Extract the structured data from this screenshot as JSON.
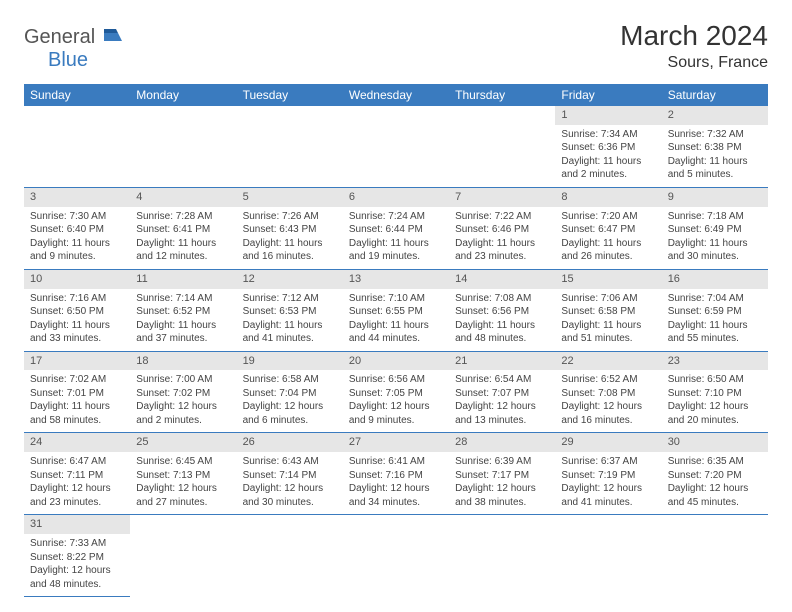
{
  "logo": {
    "general": "General",
    "blue": "Blue"
  },
  "title": "March 2024",
  "location": "Sours, France",
  "colors": {
    "header_bg": "#3a7bbf",
    "header_text": "#ffffff",
    "daynum_bg": "#e6e6e6",
    "border": "#3a7bbf",
    "text": "#444444"
  },
  "week_headers": [
    "Sunday",
    "Monday",
    "Tuesday",
    "Wednesday",
    "Thursday",
    "Friday",
    "Saturday"
  ],
  "weeks": [
    [
      null,
      null,
      null,
      null,
      null,
      {
        "n": "1",
        "sr": "Sunrise: 7:34 AM",
        "ss": "Sunset: 6:36 PM",
        "dl": "Daylight: 11 hours and 2 minutes."
      },
      {
        "n": "2",
        "sr": "Sunrise: 7:32 AM",
        "ss": "Sunset: 6:38 PM",
        "dl": "Daylight: 11 hours and 5 minutes."
      }
    ],
    [
      {
        "n": "3",
        "sr": "Sunrise: 7:30 AM",
        "ss": "Sunset: 6:40 PM",
        "dl": "Daylight: 11 hours and 9 minutes."
      },
      {
        "n": "4",
        "sr": "Sunrise: 7:28 AM",
        "ss": "Sunset: 6:41 PM",
        "dl": "Daylight: 11 hours and 12 minutes."
      },
      {
        "n": "5",
        "sr": "Sunrise: 7:26 AM",
        "ss": "Sunset: 6:43 PM",
        "dl": "Daylight: 11 hours and 16 minutes."
      },
      {
        "n": "6",
        "sr": "Sunrise: 7:24 AM",
        "ss": "Sunset: 6:44 PM",
        "dl": "Daylight: 11 hours and 19 minutes."
      },
      {
        "n": "7",
        "sr": "Sunrise: 7:22 AM",
        "ss": "Sunset: 6:46 PM",
        "dl": "Daylight: 11 hours and 23 minutes."
      },
      {
        "n": "8",
        "sr": "Sunrise: 7:20 AM",
        "ss": "Sunset: 6:47 PM",
        "dl": "Daylight: 11 hours and 26 minutes."
      },
      {
        "n": "9",
        "sr": "Sunrise: 7:18 AM",
        "ss": "Sunset: 6:49 PM",
        "dl": "Daylight: 11 hours and 30 minutes."
      }
    ],
    [
      {
        "n": "10",
        "sr": "Sunrise: 7:16 AM",
        "ss": "Sunset: 6:50 PM",
        "dl": "Daylight: 11 hours and 33 minutes."
      },
      {
        "n": "11",
        "sr": "Sunrise: 7:14 AM",
        "ss": "Sunset: 6:52 PM",
        "dl": "Daylight: 11 hours and 37 minutes."
      },
      {
        "n": "12",
        "sr": "Sunrise: 7:12 AM",
        "ss": "Sunset: 6:53 PM",
        "dl": "Daylight: 11 hours and 41 minutes."
      },
      {
        "n": "13",
        "sr": "Sunrise: 7:10 AM",
        "ss": "Sunset: 6:55 PM",
        "dl": "Daylight: 11 hours and 44 minutes."
      },
      {
        "n": "14",
        "sr": "Sunrise: 7:08 AM",
        "ss": "Sunset: 6:56 PM",
        "dl": "Daylight: 11 hours and 48 minutes."
      },
      {
        "n": "15",
        "sr": "Sunrise: 7:06 AM",
        "ss": "Sunset: 6:58 PM",
        "dl": "Daylight: 11 hours and 51 minutes."
      },
      {
        "n": "16",
        "sr": "Sunrise: 7:04 AM",
        "ss": "Sunset: 6:59 PM",
        "dl": "Daylight: 11 hours and 55 minutes."
      }
    ],
    [
      {
        "n": "17",
        "sr": "Sunrise: 7:02 AM",
        "ss": "Sunset: 7:01 PM",
        "dl": "Daylight: 11 hours and 58 minutes."
      },
      {
        "n": "18",
        "sr": "Sunrise: 7:00 AM",
        "ss": "Sunset: 7:02 PM",
        "dl": "Daylight: 12 hours and 2 minutes."
      },
      {
        "n": "19",
        "sr": "Sunrise: 6:58 AM",
        "ss": "Sunset: 7:04 PM",
        "dl": "Daylight: 12 hours and 6 minutes."
      },
      {
        "n": "20",
        "sr": "Sunrise: 6:56 AM",
        "ss": "Sunset: 7:05 PM",
        "dl": "Daylight: 12 hours and 9 minutes."
      },
      {
        "n": "21",
        "sr": "Sunrise: 6:54 AM",
        "ss": "Sunset: 7:07 PM",
        "dl": "Daylight: 12 hours and 13 minutes."
      },
      {
        "n": "22",
        "sr": "Sunrise: 6:52 AM",
        "ss": "Sunset: 7:08 PM",
        "dl": "Daylight: 12 hours and 16 minutes."
      },
      {
        "n": "23",
        "sr": "Sunrise: 6:50 AM",
        "ss": "Sunset: 7:10 PM",
        "dl": "Daylight: 12 hours and 20 minutes."
      }
    ],
    [
      {
        "n": "24",
        "sr": "Sunrise: 6:47 AM",
        "ss": "Sunset: 7:11 PM",
        "dl": "Daylight: 12 hours and 23 minutes."
      },
      {
        "n": "25",
        "sr": "Sunrise: 6:45 AM",
        "ss": "Sunset: 7:13 PM",
        "dl": "Daylight: 12 hours and 27 minutes."
      },
      {
        "n": "26",
        "sr": "Sunrise: 6:43 AM",
        "ss": "Sunset: 7:14 PM",
        "dl": "Daylight: 12 hours and 30 minutes."
      },
      {
        "n": "27",
        "sr": "Sunrise: 6:41 AM",
        "ss": "Sunset: 7:16 PM",
        "dl": "Daylight: 12 hours and 34 minutes."
      },
      {
        "n": "28",
        "sr": "Sunrise: 6:39 AM",
        "ss": "Sunset: 7:17 PM",
        "dl": "Daylight: 12 hours and 38 minutes."
      },
      {
        "n": "29",
        "sr": "Sunrise: 6:37 AM",
        "ss": "Sunset: 7:19 PM",
        "dl": "Daylight: 12 hours and 41 minutes."
      },
      {
        "n": "30",
        "sr": "Sunrise: 6:35 AM",
        "ss": "Sunset: 7:20 PM",
        "dl": "Daylight: 12 hours and 45 minutes."
      }
    ],
    [
      {
        "n": "31",
        "sr": "Sunrise: 7:33 AM",
        "ss": "Sunset: 8:22 PM",
        "dl": "Daylight: 12 hours and 48 minutes."
      },
      null,
      null,
      null,
      null,
      null,
      null
    ]
  ]
}
